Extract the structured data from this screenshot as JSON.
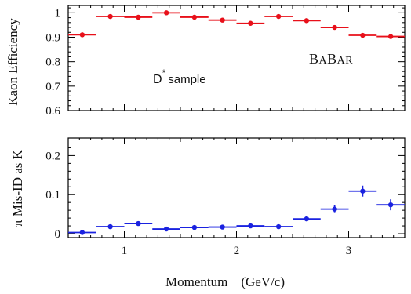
{
  "chart_data": [
    {
      "type": "scatter",
      "ylabel": "Kaon Efficiency",
      "ylim": [
        0.6,
        1.03
      ],
      "xlim": [
        0.5,
        3.5
      ],
      "yticks": [
        "0.6",
        "0.7",
        "0.8",
        "0.9",
        "1"
      ],
      "yticks_values": [
        0.6,
        0.7,
        0.8,
        0.9,
        1.0
      ],
      "color": "#e8101a",
      "annotations": {
        "sample": "D",
        "sample_sup": "*",
        "sample_suffix": "sample",
        "brand_b1": "B",
        "brand_a1": "A",
        "brand_b2": "B",
        "brand_a2": "AR"
      },
      "x": [
        0.625,
        0.875,
        1.125,
        1.375,
        1.625,
        1.875,
        2.125,
        2.375,
        2.625,
        2.875,
        3.125,
        3.375
      ],
      "xerr": [
        0.125,
        0.125,
        0.125,
        0.125,
        0.125,
        0.125,
        0.125,
        0.125,
        0.125,
        0.125,
        0.125,
        0.125
      ],
      "y": [
        0.91,
        0.985,
        0.982,
        1.0,
        0.982,
        0.97,
        0.957,
        0.985,
        0.968,
        0.94,
        0.908,
        0.903
      ],
      "yerr": [
        0.01,
        0.004,
        0.004,
        0.003,
        0.004,
        0.004,
        0.005,
        0.004,
        0.005,
        0.006,
        0.007,
        0.009
      ]
    },
    {
      "type": "scatter",
      "xlabel": "Momentum    (GeV/c)",
      "ylabel": "π Mis-ID as K",
      "ylim": [
        -0.01,
        0.245
      ],
      "xlim": [
        0.5,
        3.5
      ],
      "xticks": [
        "1",
        "2",
        "3"
      ],
      "xticks_values": [
        1,
        2,
        3
      ],
      "yticks": [
        "0",
        "0.1",
        "0.2"
      ],
      "yticks_values": [
        0.0,
        0.1,
        0.2
      ],
      "color": "#1a22e0",
      "x": [
        0.625,
        0.875,
        1.125,
        1.375,
        1.625,
        1.875,
        2.125,
        2.375,
        2.625,
        2.875,
        3.125,
        3.375
      ],
      "xerr": [
        0.125,
        0.125,
        0.125,
        0.125,
        0.125,
        0.125,
        0.125,
        0.125,
        0.125,
        0.125,
        0.125,
        0.125
      ],
      "y": [
        0.003,
        0.018,
        0.026,
        0.012,
        0.016,
        0.017,
        0.02,
        0.018,
        0.038,
        0.063,
        0.109,
        0.074
      ],
      "yerr": [
        0.003,
        0.004,
        0.004,
        0.003,
        0.003,
        0.003,
        0.004,
        0.004,
        0.006,
        0.01,
        0.014,
        0.014
      ]
    }
  ]
}
